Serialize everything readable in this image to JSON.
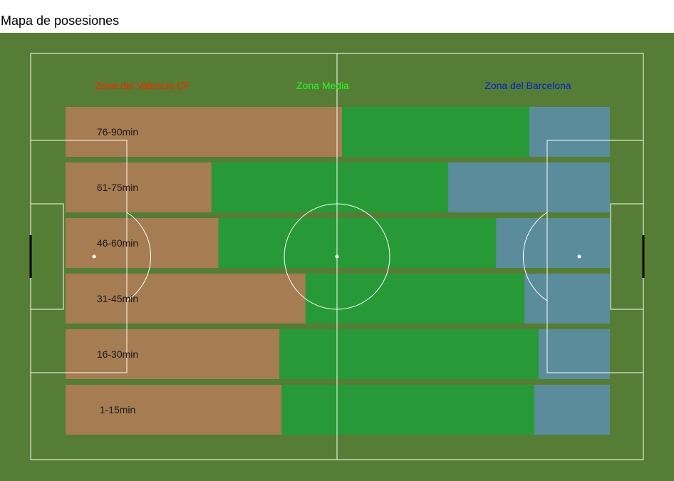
{
  "title": "Mapa de posesiones",
  "colors": {
    "field": "#567d35",
    "lines": "#ffffff",
    "valencia_bar": "#a67c52",
    "media_bar": "#279a37",
    "barcelona_bar": "#5b8c9c",
    "valencia_label": "#ff2200",
    "media_label": "#22ff22",
    "barcelona_label": "#0022cc"
  },
  "chart_data": {
    "type": "bar",
    "orientation": "horizontal",
    "stacked": true,
    "title": "Mapa de posesiones",
    "categories": [
      "76-90min",
      "61-75min",
      "46-60min",
      "31-45min",
      "16-30min",
      "1-15min"
    ],
    "series": [
      {
        "name": "Zona del Valencia CF",
        "color": "#a67c52",
        "values": [
          50.8,
          26.8,
          28.1,
          44.1,
          39.3,
          39.7
        ]
      },
      {
        "name": "Zona Media",
        "color": "#279a37",
        "values": [
          34.4,
          43.5,
          51.0,
          40.2,
          47.6,
          46.4
        ]
      },
      {
        "name": "Zona del Barcelona",
        "color": "#5b8c9c",
        "values": [
          14.8,
          29.7,
          20.9,
          15.7,
          13.1,
          13.9
        ]
      }
    ],
    "xlim": [
      0,
      100
    ],
    "grid": false,
    "legend": "top"
  }
}
